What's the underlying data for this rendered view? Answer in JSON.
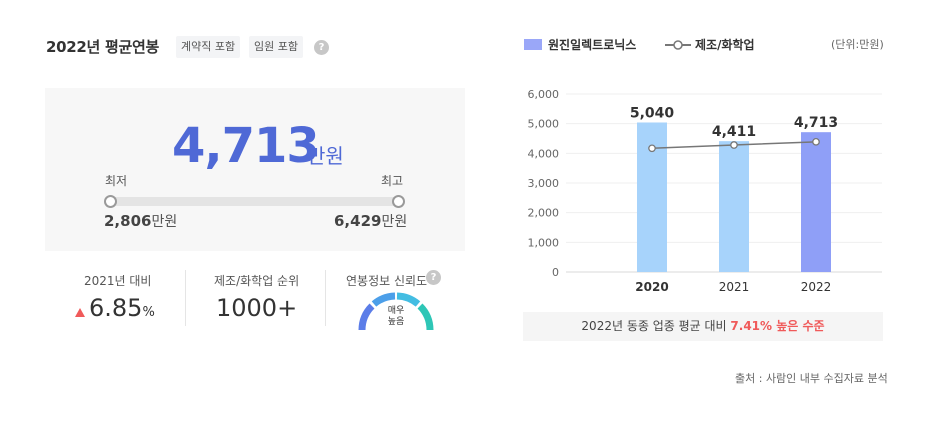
{
  "header": {
    "title": "2022년 평균연봉",
    "tags": [
      "계약직 포함",
      "임원 포함"
    ],
    "help": "?"
  },
  "salary": {
    "value": "4,713",
    "unit": "만원",
    "min_label": "최저",
    "max_label": "최고",
    "min_value": "2,806",
    "max_value": "6,429",
    "value_unit": "만원"
  },
  "stats": {
    "change_label": "2021년 대비",
    "change_value": "6.85",
    "change_unit": "%",
    "rank_label": "제조/화학업 순위",
    "rank_value": "1000+",
    "trust_label": "연봉정보 신뢰도",
    "trust_value_line1": "매우",
    "trust_value_line2": "높음",
    "trust_level": 1.0
  },
  "legend": {
    "series1": "원진일렉트로닉스",
    "series2": "제조/화학업",
    "unit": "(단위:만원)"
  },
  "comparison": {
    "prefix": "2022년 동종 업종 평균 대비",
    "highlight": "7.41% 높은 수준"
  },
  "source": "출처 : 사람인 내부 수집자료 분석",
  "colors": {
    "accent": "#4f69d6",
    "bar_light": "#a7d3fb",
    "bar_current": "#8f9ff7",
    "line": "#777777",
    "up": "#f05a5a"
  },
  "chart_data": {
    "type": "bar",
    "categories": [
      "2020",
      "2021",
      "2022"
    ],
    "series": [
      {
        "name": "원진일렉트로닉스",
        "values": [
          5040,
          4411,
          4713
        ],
        "labels": [
          "5,040",
          "4,411",
          "4,713"
        ]
      },
      {
        "name": "제조/화학업",
        "type": "line",
        "values": [
          4170,
          4280,
          4388
        ]
      }
    ],
    "yticks": [
      "0",
      "1,000",
      "2,000",
      "3,000",
      "4,000",
      "5,000",
      "6,000"
    ],
    "ylim": [
      0,
      6000
    ],
    "grid": true,
    "legend": "top-left"
  }
}
